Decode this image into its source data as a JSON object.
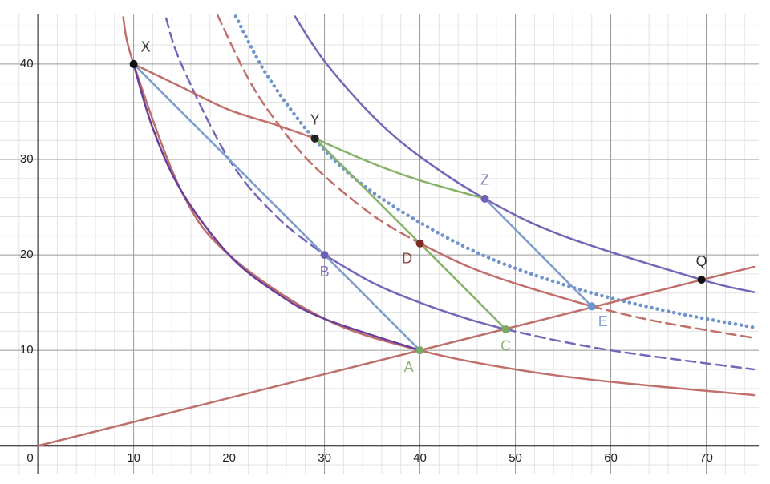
{
  "chart_data": {
    "type": "line",
    "xlim": [
      -4,
      75.5
    ],
    "ylim": [
      -3,
      45.2
    ],
    "xticks": [
      0,
      10,
      20,
      30,
      40,
      50,
      60,
      70
    ],
    "yticks": [
      10,
      20,
      30,
      40
    ],
    "xminor": [
      -2,
      2,
      4,
      6,
      8,
      12,
      14,
      16,
      18,
      22,
      24,
      26,
      28,
      32,
      34,
      36,
      38,
      42,
      44,
      46,
      48,
      52,
      54,
      56,
      58,
      62,
      64,
      66,
      68,
      72,
      74
    ],
    "yminor": [
      -2,
      2,
      4,
      6,
      8,
      12,
      14,
      16,
      18,
      22,
      24,
      26,
      28,
      32,
      34,
      36,
      38,
      42,
      44
    ],
    "grid": true,
    "series": [
      {
        "color": "#c0706b",
        "dash": "solid",
        "x": [
          8.9,
          10,
          15,
          20,
          30,
          40,
          50,
          60,
          75
        ],
        "values": [
          44.9,
          40,
          26.7,
          20,
          13.3,
          10,
          8,
          6.7,
          5.3
        ]
      },
      {
        "color": "#6a3f9c",
        "dash": "solid",
        "x": [
          10,
          12,
          15,
          20,
          25,
          30,
          40
        ],
        "values": [
          40,
          33.3,
          26.7,
          20,
          16,
          13.3,
          10
        ]
      },
      {
        "color": "#7467b8",
        "dash": "dashed",
        "x": [
          13.4,
          15,
          20,
          25,
          30
        ],
        "values": [
          44.8,
          40,
          30,
          24,
          20
        ]
      },
      {
        "color": "#7467b8",
        "dash": "solid",
        "x": [
          30,
          35,
          40,
          45,
          49
        ],
        "values": [
          20,
          17.1,
          15,
          13.3,
          12.2
        ]
      },
      {
        "color": "#7467b8",
        "dash": "dashed",
        "x": [
          49,
          55,
          62,
          75
        ],
        "values": [
          12.2,
          10.9,
          9.7,
          8
        ]
      },
      {
        "color": "#c0706b",
        "dash": "dashed",
        "x": [
          18.8,
          22,
          25,
          29,
          35,
          40
        ],
        "values": [
          45.1,
          38.5,
          33.9,
          29.2,
          24.2,
          21.2
        ]
      },
      {
        "color": "#c0706b",
        "dash": "solid",
        "x": [
          40,
          45,
          50,
          58
        ],
        "values": [
          21.2,
          18.8,
          17,
          14.6
        ]
      },
      {
        "color": "#c0706b",
        "dash": "dashed",
        "x": [
          58,
          65,
          75
        ],
        "values": [
          14.6,
          13,
          11.3
        ]
      },
      {
        "color": "#6f93cc",
        "dash": "dotted",
        "x": [
          20.7,
          24,
          29,
          35,
          45,
          55,
          65,
          75
        ],
        "values": [
          45,
          38.8,
          32.1,
          26.6,
          20.7,
          16.9,
          14.3,
          12.4
        ]
      },
      {
        "color": "#7467b8",
        "dash": "solid",
        "x": [
          26.9,
          30,
          35,
          40,
          46.8,
          55,
          69.5,
          75
        ],
        "values": [
          45,
          40.3,
          34.6,
          30.3,
          25.9,
          22,
          17.4,
          16.1
        ]
      },
      {
        "color": "#c0706b",
        "dash": "solid",
        "x": [
          10,
          15,
          20,
          25,
          29
        ],
        "values": [
          40,
          37.6,
          35.2,
          33.6,
          32.2
        ]
      },
      {
        "color": "#c0706b",
        "dash": "solid",
        "x": [
          0,
          75
        ],
        "values": [
          0,
          18.75
        ]
      },
      {
        "color": "#7b9ccc",
        "dash": "solid",
        "x": [
          10,
          40
        ],
        "values": [
          40,
          10
        ]
      },
      {
        "color": "#7b9ccc",
        "dash": "solid",
        "x": [
          46.8,
          58
        ],
        "values": [
          25.9,
          14.6
        ]
      },
      {
        "color": "#86b26a",
        "dash": "solid",
        "x": [
          29,
          49
        ],
        "values": [
          32.2,
          12.2
        ]
      },
      {
        "color": "#86b26a",
        "dash": "solid",
        "x": [
          29,
          35,
          40,
          46.8
        ],
        "values": [
          32.2,
          29.6,
          27.8,
          25.9
        ]
      }
    ],
    "points": [
      {
        "label": "X",
        "x": 10,
        "y": 40,
        "color": "#111111"
      },
      {
        "label": "Y",
        "x": 29,
        "y": 32.2,
        "color": "#222222"
      },
      {
        "label": "Z",
        "x": 46.8,
        "y": 25.9,
        "color": "#6f5fb5"
      },
      {
        "label": "B",
        "x": 30,
        "y": 20,
        "color": "#6f5fb5"
      },
      {
        "label": "D",
        "x": 40,
        "y": 21.2,
        "color": "#7a2a22"
      },
      {
        "label": "A",
        "x": 40,
        "y": 10,
        "color": "#7ea866"
      },
      {
        "label": "C",
        "x": 49,
        "y": 12.2,
        "color": "#7ea866"
      },
      {
        "label": "E",
        "x": 58,
        "y": 14.6,
        "color": "#6f93cc"
      },
      {
        "label": "Q",
        "x": 69.5,
        "y": 17.4,
        "color": "#111111"
      }
    ]
  }
}
